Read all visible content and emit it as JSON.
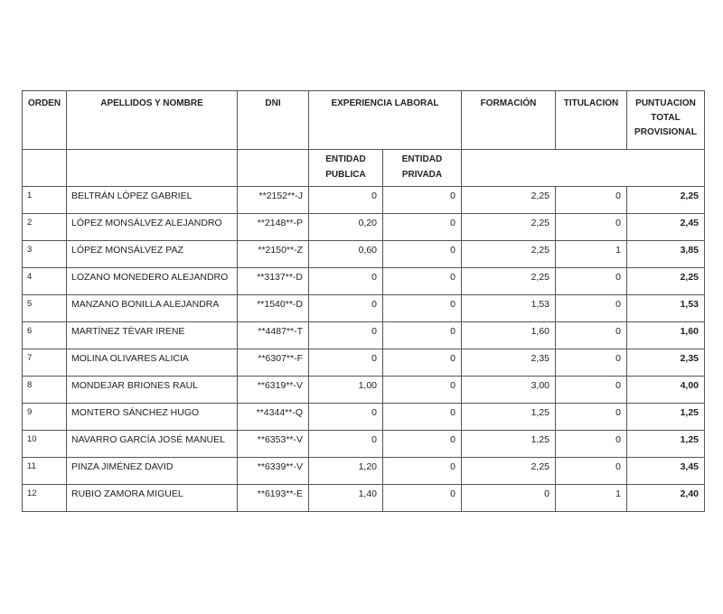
{
  "headers": {
    "orden": "ORDEN",
    "nombre": "APELLIDOS Y NOMBRE",
    "dni": "DNI",
    "experiencia": "EXPERIENCIA LABORAL",
    "formacion": "FORMACIÓN",
    "titulacion": "TITULACION",
    "puntuacion": [
      "PUNTUACION",
      "TOTAL",
      "PROVISIONAL"
    ],
    "entidad_publica": [
      "ENTIDAD",
      "PUBLICA"
    ],
    "entidad_privada": [
      "ENTIDAD",
      "PRIVADA"
    ]
  },
  "rows": [
    {
      "orden": "1",
      "nombre": "BELTRÁN LÓPEZ GABRIEL",
      "dni": "**2152**-J",
      "publica": "0",
      "privada": "0",
      "formacion": "2,25",
      "titulacion": "0",
      "total": "2,25"
    },
    {
      "orden": "2",
      "nombre": "LÓPEZ MONSÁLVEZ ALEJANDRO",
      "dni": "**2148**-P",
      "publica": "0,20",
      "privada": "0",
      "formacion": "2,25",
      "titulacion": "0",
      "total": "2,45"
    },
    {
      "orden": "3",
      "nombre": "LÓPEZ MONSÁLVEZ PAZ",
      "dni": "**2150**-Z",
      "publica": "0,60",
      "privada": "0",
      "formacion": "2,25",
      "titulacion": "1",
      "total": "3,85"
    },
    {
      "orden": "4",
      "nombre": "LOZANO MONEDERO ALEJANDRO",
      "dni": "**3137**-D",
      "publica": "0",
      "privada": "0",
      "formacion": "2,25",
      "titulacion": "0",
      "total": "2,25"
    },
    {
      "orden": "5",
      "nombre": "MANZANO BONILLA ALEJANDRA",
      "dni": "**1540**-D",
      "publica": "0",
      "privada": "0",
      "formacion": "1,53",
      "titulacion": "0",
      "total": "1,53"
    },
    {
      "orden": "6",
      "nombre": "MARTÍNEZ TÉVAR IRENE",
      "dni": "**4487**-T",
      "publica": "0",
      "privada": "0",
      "formacion": "1,60",
      "titulacion": "0",
      "total": "1,60"
    },
    {
      "orden": "7",
      "nombre": "MOLINA OLIVARES ALICIA",
      "dni": "**6307**-F",
      "publica": "0",
      "privada": "0",
      "formacion": "2,35",
      "titulacion": "0",
      "total": "2,35"
    },
    {
      "orden": "8",
      "nombre": "MONDEJAR BRIONES RAUL",
      "dni": "**6319**-V",
      "publica": "1,00",
      "privada": "0",
      "formacion": "3,00",
      "titulacion": "0",
      "total": "4,00"
    },
    {
      "orden": "9",
      "nombre": "MONTERO SÁNCHEZ HUGO",
      "dni": "**4344**-Q",
      "publica": "0",
      "privada": "0",
      "formacion": "1,25",
      "titulacion": "0",
      "total": "1,25"
    },
    {
      "orden": "10",
      "nombre": "NAVARRO GARCÍA JOSÉ MANUEL",
      "dni": "**6353**-V",
      "publica": "0",
      "privada": "0",
      "formacion": "1,25",
      "titulacion": "0",
      "total": "1,25"
    },
    {
      "orden": "11",
      "nombre": "PINZA JIMÉNEZ DAVID",
      "dni": "**6339**-V",
      "publica": "1,20",
      "privada": "0",
      "formacion": "2,25",
      "titulacion": "0",
      "total": "3,45"
    },
    {
      "orden": "12",
      "nombre": "RUBIO ZAMORA MIGUEL",
      "dni": "**6193**-E",
      "publica": "1,40",
      "privada": "0",
      "formacion": "0",
      "titulacion": "1",
      "total": "2,40"
    }
  ]
}
